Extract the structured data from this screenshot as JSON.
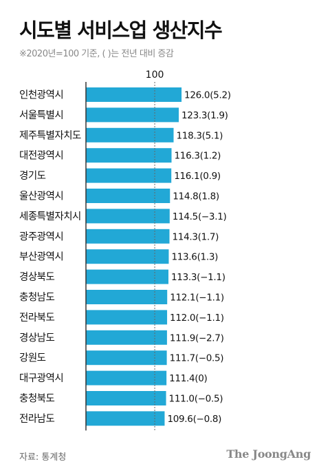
{
  "header": {
    "title": "시도별 서비스업 생산지수",
    "subtitle": "※2020년=100 기준, ( )는 전년 대비 증감"
  },
  "footer": {
    "source": "자료: 통계청",
    "brand": "The JoongAng"
  },
  "colors": {
    "bar": "#22a8d6",
    "axis": "#333333",
    "reference_line": "#666666"
  },
  "chart_data": {
    "type": "bar",
    "orientation": "horizontal",
    "title": "시도별 서비스업 생산지수",
    "subtitle": "※2020년=100 기준, ( )는 전년 대비 증감",
    "reference_line": {
      "value": 100,
      "label": "100"
    },
    "categories": [
      "인천광역시",
      "서울특별시",
      "제주특별자치도",
      "대전광역시",
      "경기도",
      "울산광역시",
      "세종특별자치시",
      "광주광역시",
      "부산광역시",
      "경상북도",
      "충청남도",
      "전라북도",
      "경상남도",
      "강원도",
      "대구광역시",
      "충청북도",
      "전라남도"
    ],
    "values": [
      126.0,
      123.3,
      118.3,
      116.3,
      116.1,
      114.8,
      114.5,
      114.3,
      113.6,
      113.3,
      112.1,
      112.0,
      111.9,
      111.7,
      111.4,
      111.0,
      109.6
    ],
    "changes": [
      5.2,
      1.9,
      5.1,
      1.2,
      0.9,
      1.8,
      -3.1,
      1.7,
      1.3,
      -1.1,
      -1.1,
      -1.1,
      -2.7,
      -0.5,
      0,
      -0.5,
      -0.8
    ],
    "value_labels": [
      "126.0(5.2)",
      "123.3(1.9)",
      "118.3(5.1)",
      "116.3(1.2)",
      "116.1(0.9)",
      "114.8(1.8)",
      "114.5(−3.1)",
      "114.3(1.7)",
      "113.6(1.3)",
      "113.3(−1.1)",
      "112.1(−1.1)",
      "112.0(−1.1)",
      "111.9(−2.7)",
      "111.7(−0.5)",
      "111.4(0)",
      "111.0(−0.5)",
      "109.6(−0.8)"
    ],
    "grid": false,
    "legend": "none"
  }
}
